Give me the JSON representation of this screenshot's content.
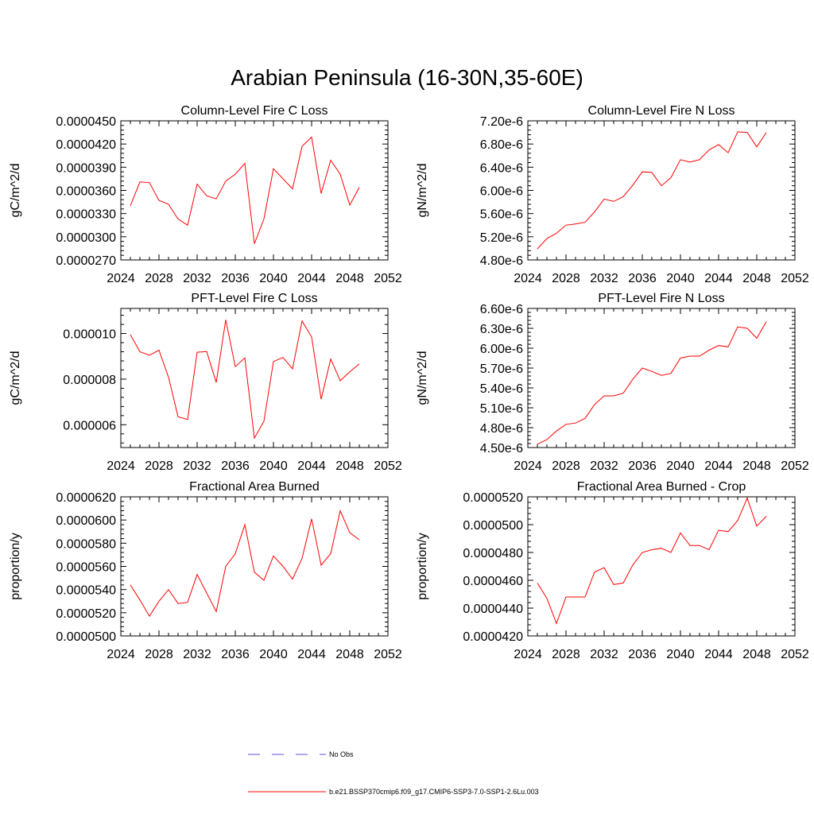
{
  "page_title": "Arabian Peninsula (16-30N,35-60E)",
  "legend": {
    "entries": [
      {
        "label": "No Obs",
        "color": "#5555cc",
        "style": "dashed"
      },
      {
        "label": "b.e21.BSSP370cmip6.f09_g17.CMIP6-SSP3-7.0-SSP1-2.6Lu.003",
        "color": "#ff0000",
        "style": "solid"
      }
    ]
  },
  "chart_data": [
    {
      "type": "line",
      "title": "Column-Level Fire C Loss",
      "ylabel": "gC/m^2/d",
      "xlim": [
        2024,
        2052
      ],
      "xticks": [
        "2024",
        "2028",
        "2032",
        "2036",
        "2040",
        "2044",
        "2048",
        "2052"
      ],
      "ylim": [
        2.7e-05,
        4.5e-05
      ],
      "yticks": [
        "0.0000270",
        "0.0000300",
        "0.0000330",
        "0.0000360",
        "0.0000390",
        "0.0000420",
        "0.0000450"
      ],
      "series": [
        {
          "color": "#ff0000",
          "x": [
            2025,
            2026,
            2027,
            2028,
            2029,
            2030,
            2031,
            2032,
            2033,
            2034,
            2035,
            2036,
            2037,
            2038,
            2039,
            2040,
            2041,
            2042,
            2043,
            2044,
            2045,
            2046,
            2047,
            2048,
            2049
          ],
          "values": [
            3.4e-05,
            3.71e-05,
            3.7e-05,
            3.47e-05,
            3.42e-05,
            3.23e-05,
            3.15e-05,
            3.68e-05,
            3.53e-05,
            3.49e-05,
            3.72e-05,
            3.81e-05,
            3.95e-05,
            2.91e-05,
            3.23e-05,
            3.88e-05,
            3.75e-05,
            3.62e-05,
            4.17e-05,
            4.29e-05,
            3.56e-05,
            3.99e-05,
            3.81e-05,
            3.41e-05,
            3.64e-05
          ]
        }
      ]
    },
    {
      "type": "line",
      "title": "Column-Level Fire N Loss",
      "ylabel": "gN/m^2/d",
      "xlim": [
        2024,
        2052
      ],
      "xticks": [
        "2024",
        "2028",
        "2032",
        "2036",
        "2040",
        "2044",
        "2048",
        "2052"
      ],
      "ylim": [
        4.8e-06,
        7.2e-06
      ],
      "yticks": [
        "4.80e-6",
        "5.20e-6",
        "5.60e-6",
        "6.00e-6",
        "6.40e-6",
        "6.80e-6",
        "7.20e-6"
      ],
      "series": [
        {
          "color": "#ff0000",
          "x": [
            2025,
            2026,
            2027,
            2028,
            2029,
            2030,
            2031,
            2032,
            2033,
            2034,
            2035,
            2036,
            2037,
            2038,
            2039,
            2040,
            2041,
            2042,
            2043,
            2044,
            2045,
            2046,
            2047,
            2048,
            2049
          ],
          "values": [
            4.99e-06,
            5.17e-06,
            5.26e-06,
            5.4e-06,
            5.42e-06,
            5.45e-06,
            5.63e-06,
            5.85e-06,
            5.81e-06,
            5.89e-06,
            6.09e-06,
            6.32e-06,
            6.31e-06,
            6.08e-06,
            6.22e-06,
            6.53e-06,
            6.49e-06,
            6.53e-06,
            6.7e-06,
            6.79e-06,
            6.65e-06,
            7.01e-06,
            7e-06,
            6.75e-06,
            7e-06
          ]
        }
      ]
    },
    {
      "type": "line",
      "title": "PFT-Level Fire C Loss",
      "ylabel": "gC/m^2/d",
      "xlim": [
        2024,
        2052
      ],
      "xticks": [
        "2024",
        "2028",
        "2032",
        "2036",
        "2040",
        "2044",
        "2048",
        "2052"
      ],
      "ylim": [
        5e-06,
        1.11e-05
      ],
      "yticks": [
        "0.000006",
        "0.000008",
        "0.000010"
      ],
      "ytick_values": [
        6e-06,
        8e-06,
        1e-05
      ],
      "series": [
        {
          "color": "#ff0000",
          "x": [
            2025,
            2026,
            2027,
            2028,
            2029,
            2030,
            2031,
            2032,
            2033,
            2034,
            2035,
            2036,
            2037,
            2038,
            2039,
            2040,
            2041,
            2042,
            2043,
            2044,
            2045,
            2046,
            2047,
            2048,
            2049
          ],
          "values": [
            9.95e-06,
            9.2e-06,
            9.05e-06,
            9.27e-06,
            8.08e-06,
            6.35e-06,
            6.23e-06,
            9.18e-06,
            9.21e-06,
            7.85e-06,
            1.06e-05,
            8.55e-06,
            8.93e-06,
            5.41e-06,
            6.15e-06,
            8.77e-06,
            8.95e-06,
            8.45e-06,
            1.055e-05,
            9.85e-06,
            7.12e-06,
            8.88e-06,
            7.93e-06,
            8.32e-06,
            8.67e-06
          ]
        }
      ]
    },
    {
      "type": "line",
      "title": "PFT-Level Fire N Loss",
      "ylabel": "gN/m^2/d",
      "xlim": [
        2024,
        2052
      ],
      "xticks": [
        "2024",
        "2028",
        "2032",
        "2036",
        "2040",
        "2044",
        "2048",
        "2052"
      ],
      "ylim": [
        4.5e-06,
        6.6e-06
      ],
      "yticks": [
        "4.50e-6",
        "4.80e-6",
        "5.10e-6",
        "5.40e-6",
        "5.70e-6",
        "6.00e-6",
        "6.30e-6",
        "6.60e-6"
      ],
      "series": [
        {
          "color": "#ff0000",
          "x": [
            2025,
            2026,
            2027,
            2028,
            2029,
            2030,
            2031,
            2032,
            2033,
            2034,
            2035,
            2036,
            2037,
            2038,
            2039,
            2040,
            2041,
            2042,
            2043,
            2044,
            2045,
            2046,
            2047,
            2048,
            2049
          ],
          "values": [
            4.55e-06,
            4.62e-06,
            4.75e-06,
            4.85e-06,
            4.87e-06,
            4.94e-06,
            5.15e-06,
            5.28e-06,
            5.28e-06,
            5.32e-06,
            5.53e-06,
            5.7e-06,
            5.65e-06,
            5.59e-06,
            5.62e-06,
            5.85e-06,
            5.88e-06,
            5.88e-06,
            5.97e-06,
            6.04e-06,
            6.02e-06,
            6.32e-06,
            6.3e-06,
            6.15e-06,
            6.4e-06
          ]
        }
      ]
    },
    {
      "type": "line",
      "title": "Fractional Area Burned",
      "ylabel": "proportion/y",
      "xlim": [
        2024,
        2052
      ],
      "xticks": [
        "2024",
        "2028",
        "2032",
        "2036",
        "2040",
        "2044",
        "2048",
        "2052"
      ],
      "ylim": [
        5e-05,
        6.2e-05
      ],
      "yticks": [
        "0.0000500",
        "0.0000520",
        "0.0000540",
        "0.0000560",
        "0.0000580",
        "0.0000600",
        "0.0000620"
      ],
      "series": [
        {
          "color": "#ff0000",
          "x": [
            2025,
            2026,
            2027,
            2028,
            2029,
            2030,
            2031,
            2032,
            2033,
            2034,
            2035,
            2036,
            2037,
            2038,
            2039,
            2040,
            2041,
            2042,
            2043,
            2044,
            2045,
            2046,
            2047,
            2048,
            2049
          ],
          "values": [
            5.44e-05,
            5.31e-05,
            5.17e-05,
            5.3e-05,
            5.4e-05,
            5.28e-05,
            5.29e-05,
            5.53e-05,
            5.37e-05,
            5.21e-05,
            5.6e-05,
            5.71e-05,
            5.96e-05,
            5.55e-05,
            5.48e-05,
            5.69e-05,
            5.6e-05,
            5.49e-05,
            5.67e-05,
            6.01e-05,
            5.61e-05,
            5.71e-05,
            6.08e-05,
            5.89e-05,
            5.83e-05
          ]
        }
      ]
    },
    {
      "type": "line",
      "title": "Fractional Area Burned - Crop",
      "ylabel": "proportion/y",
      "xlim": [
        2024,
        2052
      ],
      "xticks": [
        "2024",
        "2028",
        "2032",
        "2036",
        "2040",
        "2044",
        "2048",
        "2052"
      ],
      "ylim": [
        4.2e-05,
        5.2e-05
      ],
      "yticks": [
        "0.0000420",
        "0.0000440",
        "0.0000460",
        "0.0000480",
        "0.0000500",
        "0.0000520"
      ],
      "series": [
        {
          "color": "#ff0000",
          "x": [
            2025,
            2026,
            2027,
            2028,
            2029,
            2030,
            2031,
            2032,
            2033,
            2034,
            2035,
            2036,
            2037,
            2038,
            2039,
            2040,
            2041,
            2042,
            2043,
            2044,
            2045,
            2046,
            2047,
            2048,
            2049
          ],
          "values": [
            4.58e-05,
            4.47e-05,
            4.29e-05,
            4.48e-05,
            4.48e-05,
            4.48e-05,
            4.66e-05,
            4.69e-05,
            4.57e-05,
            4.58e-05,
            4.71e-05,
            4.8e-05,
            4.82e-05,
            4.83e-05,
            4.8e-05,
            4.94e-05,
            4.85e-05,
            4.85e-05,
            4.82e-05,
            4.96e-05,
            4.95e-05,
            5.03e-05,
            5.19e-05,
            4.99e-05,
            5.06e-05
          ]
        }
      ]
    }
  ]
}
